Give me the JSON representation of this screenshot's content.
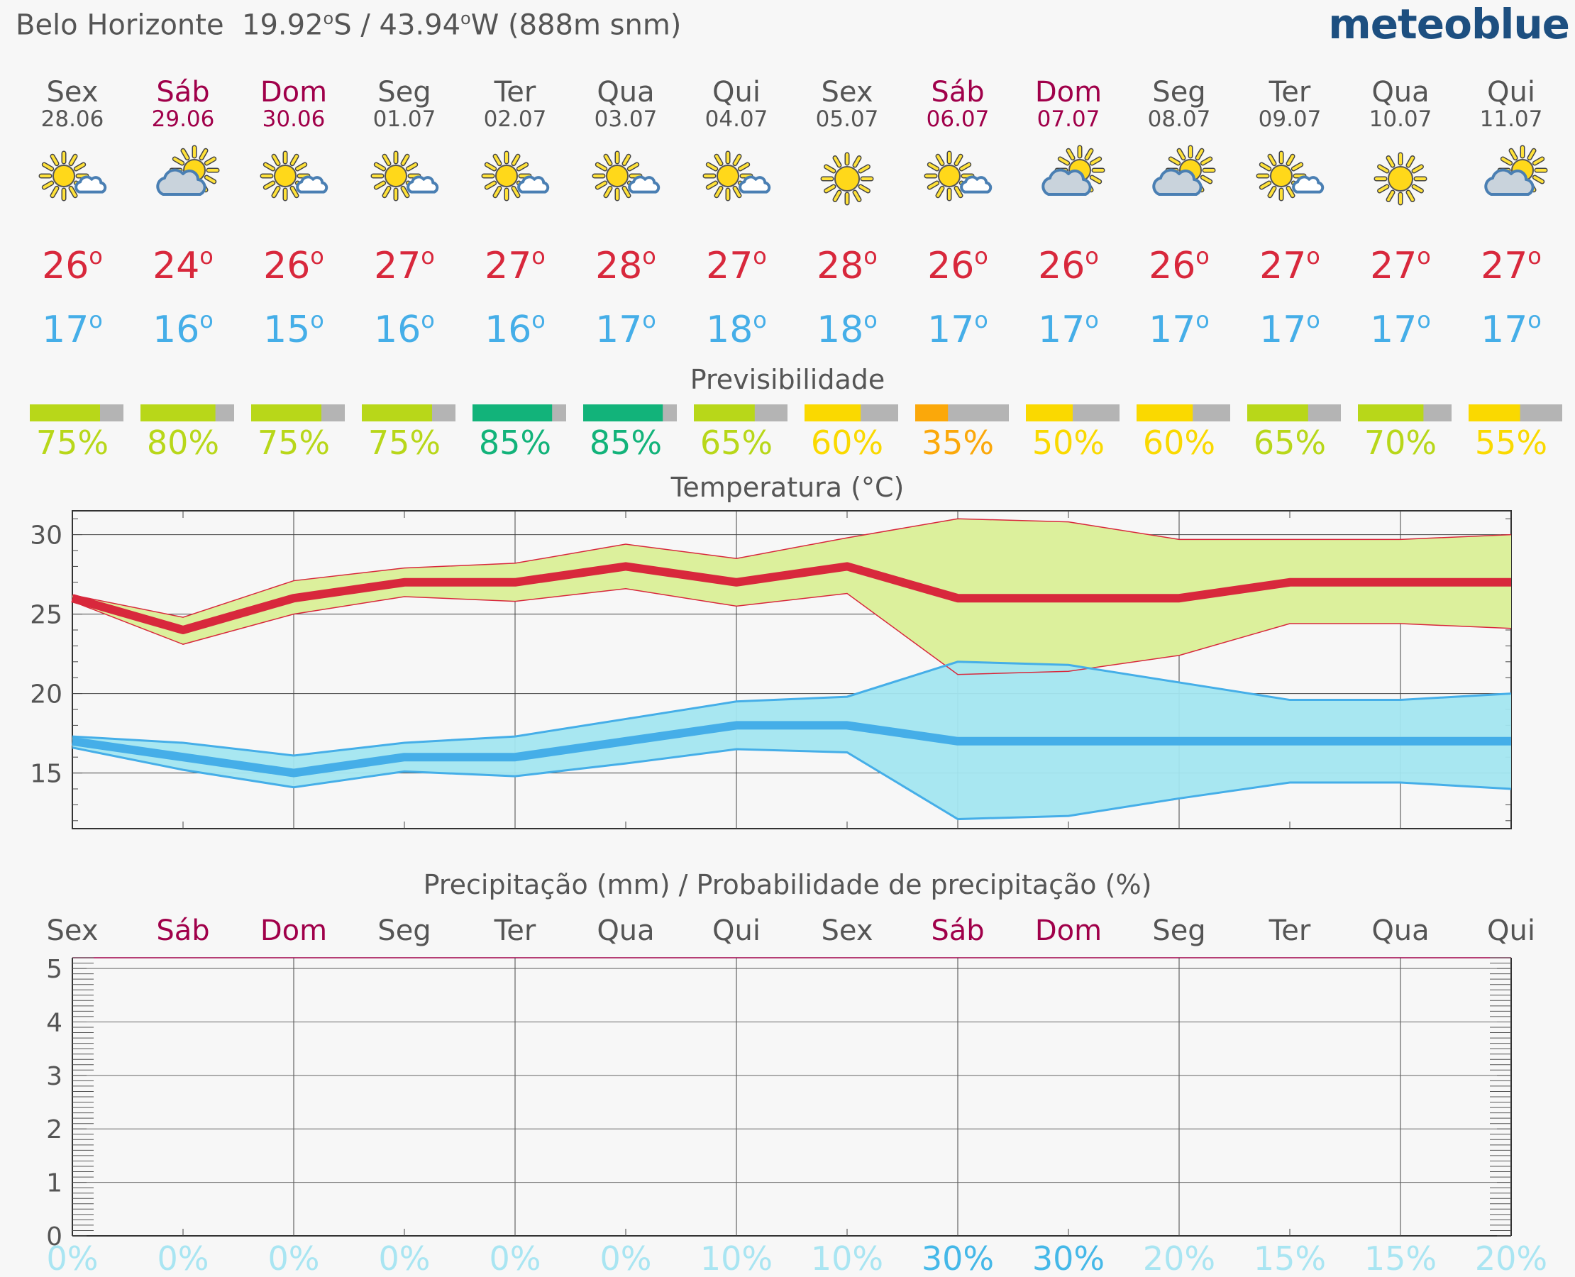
{
  "header": {
    "location": "Belo Horizonte",
    "lat": "19.92",
    "lat_dir": "S",
    "sep": " / ",
    "lon": "43.94",
    "lon_dir": "W",
    "elevation": "(888m snm)",
    "brand": "meteoblue"
  },
  "days": [
    {
      "name": "Sex",
      "date": "28.06",
      "weekend": false,
      "icon": "sun-cloud-icon",
      "max": 26,
      "min": 17,
      "pred": 75,
      "pred_color": "#b8d719",
      "precip_prob": 0
    },
    {
      "name": "Sáb",
      "date": "29.06",
      "weekend": true,
      "icon": "cloud-sun-icon",
      "max": 24,
      "min": 16,
      "pred": 80,
      "pred_color": "#b8d719",
      "precip_prob": 0
    },
    {
      "name": "Dom",
      "date": "30.06",
      "weekend": true,
      "icon": "sun-cloud-icon",
      "max": 26,
      "min": 15,
      "pred": 75,
      "pred_color": "#b8d719",
      "precip_prob": 0
    },
    {
      "name": "Seg",
      "date": "01.07",
      "weekend": false,
      "icon": "sun-cloud-icon",
      "max": 27,
      "min": 16,
      "pred": 75,
      "pred_color": "#b8d719",
      "precip_prob": 0
    },
    {
      "name": "Ter",
      "date": "02.07",
      "weekend": false,
      "icon": "sun-cloud-icon",
      "max": 27,
      "min": 16,
      "pred": 85,
      "pred_color": "#12b37a",
      "precip_prob": 0
    },
    {
      "name": "Qua",
      "date": "03.07",
      "weekend": false,
      "icon": "sun-cloud-icon",
      "max": 28,
      "min": 17,
      "pred": 85,
      "pred_color": "#12b37a",
      "precip_prob": 0
    },
    {
      "name": "Qui",
      "date": "04.07",
      "weekend": false,
      "icon": "sun-cloud-icon",
      "max": 27,
      "min": 18,
      "pred": 65,
      "pred_color": "#b8d719",
      "precip_prob": 10
    },
    {
      "name": "Sex",
      "date": "05.07",
      "weekend": false,
      "icon": "sun-icon",
      "max": 28,
      "min": 18,
      "pred": 60,
      "pred_color": "#fad900",
      "precip_prob": 10
    },
    {
      "name": "Sáb",
      "date": "06.07",
      "weekend": true,
      "icon": "sun-cloud-icon",
      "max": 26,
      "min": 17,
      "pred": 35,
      "pred_color": "#fba80a",
      "precip_prob": 30
    },
    {
      "name": "Dom",
      "date": "07.07",
      "weekend": true,
      "icon": "cloud-sun-icon",
      "max": 26,
      "min": 17,
      "pred": 50,
      "pred_color": "#fad900",
      "precip_prob": 30
    },
    {
      "name": "Seg",
      "date": "08.07",
      "weekend": false,
      "icon": "cloud-sun-icon",
      "max": 26,
      "min": 17,
      "pred": 60,
      "pred_color": "#fad900",
      "precip_prob": 20
    },
    {
      "name": "Ter",
      "date": "09.07",
      "weekend": false,
      "icon": "sun-cloud-icon",
      "max": 27,
      "min": 17,
      "pred": 65,
      "pred_color": "#b8d719",
      "precip_prob": 15
    },
    {
      "name": "Qua",
      "date": "10.07",
      "weekend": false,
      "icon": "sun-icon",
      "max": 27,
      "min": 17,
      "pred": 70,
      "pred_color": "#b8d719",
      "precip_prob": 15
    },
    {
      "name": "Qui",
      "date": "11.07",
      "weekend": false,
      "icon": "cloud-sun-icon",
      "max": 27,
      "min": 17,
      "pred": 55,
      "pred_color": "#fad900",
      "precip_prob": 20
    }
  ],
  "sections": {
    "predictability_title": "Previsibilidade",
    "temperature_title": "Temperatura (°C)",
    "precip_title": "Precipitação (mm) / Probabilidade de precipitação (%)"
  },
  "colors": {
    "weekday": "#555555",
    "weekend": "#a0004a",
    "max_temp": "#d8283c",
    "min_temp": "#45aee8",
    "max_band": "#dcf09c",
    "min_band": "#a3e6f0",
    "pred_remainder": "#b4b4b4",
    "precip_prob_low": "#a9e5f2",
    "precip_prob_mid": "#45b8e8"
  },
  "chart_data": [
    {
      "type": "bar",
      "name": "predictability",
      "title": "Previsibilidade",
      "categories": [
        "28.06",
        "29.06",
        "30.06",
        "01.07",
        "02.07",
        "03.07",
        "04.07",
        "05.07",
        "06.07",
        "07.07",
        "08.07",
        "09.07",
        "10.07",
        "11.07"
      ],
      "values": [
        75,
        80,
        75,
        75,
        85,
        85,
        65,
        60,
        35,
        50,
        60,
        65,
        70,
        55
      ],
      "unit": "%",
      "ylim": [
        0,
        100
      ]
    },
    {
      "type": "line",
      "name": "temperature",
      "title": "Temperatura (°C)",
      "x": [
        "28.06",
        "29.06",
        "30.06",
        "01.07",
        "02.07",
        "03.07",
        "04.07",
        "05.07",
        "06.07",
        "07.07",
        "08.07",
        "09.07",
        "10.07",
        "11.07"
      ],
      "ylim": [
        11.5,
        31.5
      ],
      "yticks": [
        15,
        20,
        25,
        30
      ],
      "series": [
        {
          "values": [
            26,
            24,
            26,
            27,
            27,
            28,
            27,
            28,
            26,
            26,
            26,
            27,
            27,
            27
          ],
          "band_low": [
            25.8,
            23.1,
            25,
            26.1,
            25.8,
            26.6,
            25.5,
            26.3,
            21.2,
            21.4,
            22.4,
            24.4,
            24.4,
            24.1
          ],
          "band_high": [
            26.2,
            24.8,
            27.1,
            27.9,
            28.2,
            29.4,
            28.5,
            29.8,
            31,
            30.8,
            29.7,
            29.7,
            29.7,
            30
          ]
        },
        {
          "values": [
            17,
            16,
            15,
            16,
            16,
            17,
            18,
            18,
            17,
            17,
            17,
            17,
            17,
            17
          ],
          "band_low": [
            16.6,
            15.2,
            14.1,
            15.1,
            14.8,
            15.6,
            16.5,
            16.3,
            12.1,
            12.3,
            13.4,
            14.4,
            14.4,
            14
          ],
          "band_high": [
            17.3,
            16.9,
            16.1,
            16.9,
            17.3,
            18.4,
            19.5,
            19.8,
            22,
            21.8,
            20.7,
            19.6,
            19.6,
            20
          ]
        }
      ]
    },
    {
      "type": "bar",
      "name": "precipitation",
      "title": "Precipitação (mm) / Probabilidade de precipitação (%)",
      "categories": [
        "Sex",
        "Sáb",
        "Dom",
        "Seg",
        "Ter",
        "Qua",
        "Qui",
        "Sex",
        "Sáb",
        "Dom",
        "Seg",
        "Ter",
        "Qua",
        "Qui"
      ],
      "values": [
        0,
        0,
        0,
        0,
        0,
        0,
        0,
        0,
        0,
        0,
        0,
        0,
        0,
        0
      ],
      "probability": [
        0,
        0,
        0,
        0,
        0,
        0,
        10,
        10,
        30,
        30,
        20,
        15,
        15,
        20
      ],
      "ylim": [
        0,
        5.2
      ],
      "yticks": [
        0,
        1,
        2,
        3,
        4,
        5
      ]
    }
  ]
}
